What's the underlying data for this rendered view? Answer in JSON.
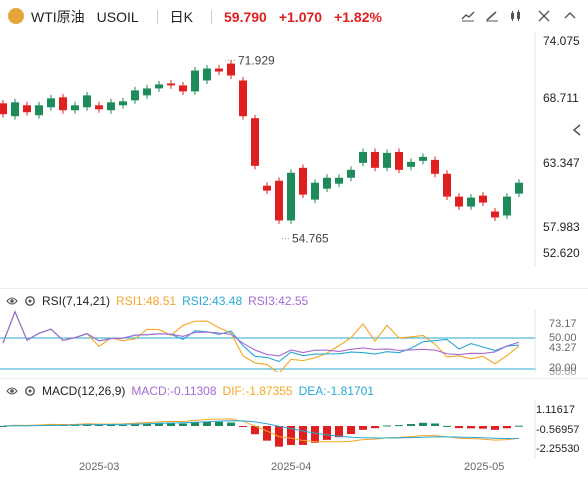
{
  "header": {
    "symbol_name": "WTI原油",
    "symbol_code": "USOIL",
    "interval": "日K",
    "price": "59.790",
    "change": "+1.070",
    "change_pct": "+1.82%"
  },
  "colors": {
    "up": "#e02020",
    "down": "#1e8b5a",
    "rsi1": "#f5a623",
    "rsi2": "#29a7d6",
    "rsi3": "#a66bd1",
    "macd": "#a66bd1",
    "dif": "#f5a623",
    "dea": "#29a7d6"
  },
  "toolbar": {
    "icons": [
      "chart-type-icon",
      "draw-icon",
      "indicator-icon",
      "fullscreen-icon",
      "more-icon"
    ]
  },
  "price_axis": {
    "labels": [
      "74.075",
      "68.711",
      "63.347",
      "57.983",
      "52.620"
    ]
  },
  "annotations": {
    "high": "71.929",
    "low": "54.765"
  },
  "rsi": {
    "label": "RSI(7,14,21)",
    "rsi1": "RSI1:48.51",
    "rsi2": "RSI2:43.48",
    "rsi3": "RSI3:42.55",
    "axis": [
      "73.17",
      "50.00",
      "43.27",
      "20.00",
      "30.00"
    ]
  },
  "macd": {
    "label": "MACD(12,26,9)",
    "macd_val": "MACD:-0.11308",
    "dif_val": "DIF:-1.87355",
    "dea_val": "DEA:-1.81701",
    "axis": [
      "1.11617",
      "-0.56957",
      "-2.25530"
    ]
  },
  "time_axis": {
    "labels": [
      "2025-03",
      "2025-04",
      "2025-05"
    ]
  },
  "chart_data": {
    "type": "candlestick",
    "price_range": [
      52.62,
      74.075
    ],
    "candles": [
      {
        "o": 67.8,
        "c": 66.7
      },
      {
        "o": 66.5,
        "c": 67.9
      },
      {
        "o": 67.6,
        "c": 66.9
      },
      {
        "o": 66.6,
        "c": 67.6
      },
      {
        "o": 67.4,
        "c": 68.3
      },
      {
        "o": 68.4,
        "c": 67.1
      },
      {
        "o": 67.1,
        "c": 67.6
      },
      {
        "o": 67.4,
        "c": 68.6
      },
      {
        "o": 67.6,
        "c": 67.2
      },
      {
        "o": 67.1,
        "c": 67.9
      },
      {
        "o": 67.6,
        "c": 68.0
      },
      {
        "o": 68.1,
        "c": 69.1
      },
      {
        "o": 68.6,
        "c": 69.3
      },
      {
        "o": 69.3,
        "c": 69.7
      },
      {
        "o": 69.8,
        "c": 69.6
      },
      {
        "o": 69.6,
        "c": 69.0
      },
      {
        "o": 69.0,
        "c": 71.1
      },
      {
        "o": 70.1,
        "c": 71.3
      },
      {
        "o": 71.3,
        "c": 71.0
      },
      {
        "o": 71.8,
        "c": 70.6
      },
      {
        "o": 70.1,
        "c": 66.5
      },
      {
        "o": 66.3,
        "c": 61.5
      },
      {
        "o": 59.5,
        "c": 59.0
      },
      {
        "o": 60.0,
        "c": 56.0
      },
      {
        "o": 56.0,
        "c": 60.8
      },
      {
        "o": 61.3,
        "c": 58.6
      },
      {
        "o": 58.1,
        "c": 59.8
      },
      {
        "o": 59.2,
        "c": 60.3
      },
      {
        "o": 59.7,
        "c": 60.3
      },
      {
        "o": 60.3,
        "c": 61.1
      },
      {
        "o": 61.8,
        "c": 62.9
      },
      {
        "o": 62.9,
        "c": 61.3
      },
      {
        "o": 61.3,
        "c": 62.8
      },
      {
        "o": 62.9,
        "c": 61.1
      },
      {
        "o": 61.4,
        "c": 61.9
      },
      {
        "o": 62.0,
        "c": 62.4
      },
      {
        "o": 62.1,
        "c": 60.7
      },
      {
        "o": 60.7,
        "c": 58.4
      },
      {
        "o": 58.4,
        "c": 57.4
      },
      {
        "o": 57.4,
        "c": 58.3
      },
      {
        "o": 58.5,
        "c": 57.8
      },
      {
        "o": 56.9,
        "c": 56.3
      },
      {
        "o": 56.5,
        "c": 58.4
      },
      {
        "o": 58.7,
        "c": 59.8
      }
    ]
  }
}
